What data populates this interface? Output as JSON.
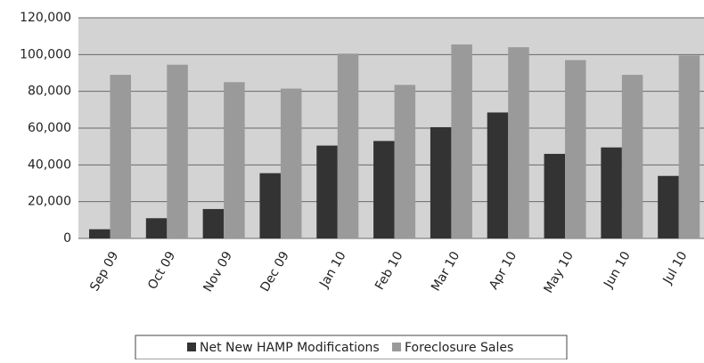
{
  "chart_data": {
    "type": "bar",
    "categories": [
      "Sep 09",
      "Oct 09",
      "Nov 09",
      "Dec 09",
      "Jan 10",
      "Feb 10",
      "Mar 10",
      "Apr 10",
      "May 10",
      "Jun 10",
      "Jul 10"
    ],
    "series": [
      {
        "name": "Net New HAMP Modifications",
        "color": "#333333",
        "values": [
          5000,
          11000,
          16000,
          35500,
          50500,
          53000,
          60500,
          68500,
          46000,
          49500,
          34000
        ]
      },
      {
        "name": "Foreclosure Sales",
        "color": "#9a9a9a",
        "values": [
          89000,
          94500,
          85000,
          81500,
          100500,
          83500,
          105500,
          104000,
          97000,
          89000,
          99500
        ]
      }
    ],
    "ylim": [
      0,
      120000
    ],
    "yticks": [
      0,
      {
        "value": 20000,
        "label": "20,000"
      },
      {
        "value": 40000,
        "label": "40,000"
      },
      {
        "value": 60000,
        "label": "60,000"
      },
      {
        "value": 80000,
        "label": "80,000"
      },
      {
        "value": 100000,
        "label": "100,000"
      },
      {
        "value": 120000,
        "label": "120,000"
      }
    ],
    "grid": true,
    "legend": "bottom"
  }
}
